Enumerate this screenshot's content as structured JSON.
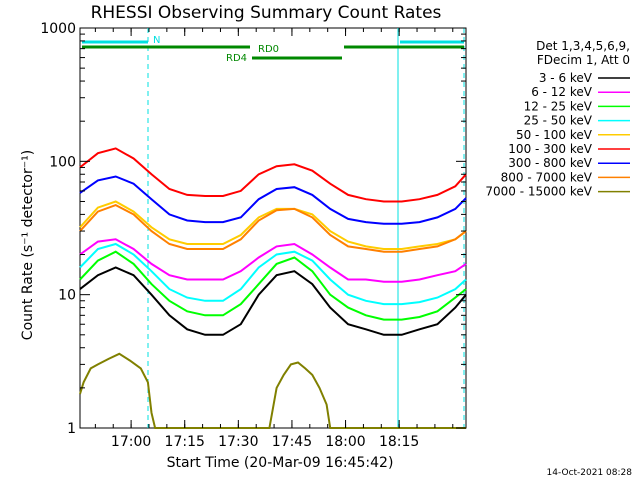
{
  "chart_data": {
    "type": "line",
    "title": "RHESSI Observing Summary Count Rates",
    "xlabel": "Start Time (20-Mar-09 16:45:42)",
    "ylabel": "Count Rate (s⁻¹ detector⁻¹)",
    "yscale": "log",
    "ylim": [
      1,
      1000
    ],
    "xlim_minutes": [
      0,
      108
    ],
    "x_ticks": [
      "17:00",
      "17:15",
      "17:30",
      "17:45",
      "18:00",
      "18:15"
    ],
    "y_ticks": [
      "1",
      "10",
      "100",
      "1000"
    ],
    "legend_header": [
      "Det 1,3,4,5,6,9,",
      "FDecim 1, Att 0"
    ],
    "legend_position": "top-right, outside plot",
    "grid": false,
    "annotations": {
      "night_label": "N",
      "rd0_label": "RD0",
      "rd4_label": "RD4"
    },
    "series": [
      {
        "name": "3 - 6 keV",
        "color": "#000000",
        "x": [
          0,
          5,
          10,
          15,
          20,
          25,
          30,
          35,
          40,
          45,
          50,
          55,
          60,
          65,
          70,
          75,
          80,
          85,
          90,
          95,
          100,
          105,
          108
        ],
        "values": [
          11,
          14,
          16,
          14,
          10,
          7,
          5.5,
          5,
          5,
          6,
          10,
          14,
          15,
          12,
          8,
          6,
          5.5,
          5,
          5,
          5.5,
          6,
          8,
          10
        ]
      },
      {
        "name": "6 - 12 keV",
        "color": "#ff00ff",
        "x": [
          0,
          5,
          10,
          15,
          20,
          25,
          30,
          35,
          40,
          45,
          50,
          55,
          60,
          65,
          70,
          75,
          80,
          85,
          90,
          95,
          100,
          105,
          108
        ],
        "values": [
          20,
          25,
          26,
          22,
          17,
          14,
          13,
          13,
          13,
          15,
          19,
          23,
          24,
          20,
          16,
          13,
          13,
          12.5,
          12.5,
          13,
          14,
          15,
          17
        ]
      },
      {
        "name": "12 - 25 keV",
        "color": "#00ff00",
        "x": [
          0,
          5,
          10,
          15,
          20,
          25,
          30,
          35,
          40,
          45,
          50,
          55,
          60,
          65,
          70,
          75,
          80,
          85,
          90,
          95,
          100,
          105,
          108
        ],
        "values": [
          13,
          18,
          21,
          17,
          12,
          9,
          7.5,
          7,
          7,
          8.5,
          12,
          17,
          19,
          15,
          10,
          8,
          7,
          6.5,
          6.5,
          6.8,
          7.5,
          9.5,
          11
        ]
      },
      {
        "name": "25 - 50 keV",
        "color": "#00ffff",
        "x": [
          0,
          5,
          10,
          15,
          20,
          25,
          30,
          35,
          40,
          45,
          50,
          55,
          60,
          65,
          70,
          75,
          80,
          85,
          90,
          95,
          100,
          105,
          108
        ],
        "values": [
          16,
          22,
          24,
          20,
          15,
          11,
          9.5,
          9,
          9,
          11,
          16,
          20,
          21,
          18,
          13,
          10,
          9,
          8.5,
          8.5,
          8.8,
          9.5,
          11,
          13
        ]
      },
      {
        "name": "50 - 100 keV",
        "color": "#ffcc00",
        "x": [
          0,
          5,
          10,
          15,
          20,
          25,
          30,
          35,
          40,
          45,
          50,
          55,
          60,
          65,
          70,
          75,
          80,
          85,
          90,
          95,
          100,
          105,
          108
        ],
        "values": [
          32,
          45,
          50,
          42,
          32,
          26,
          24,
          24,
          24,
          28,
          38,
          44,
          44,
          40,
          30,
          25,
          23,
          22,
          22,
          23,
          24,
          26,
          30
        ]
      },
      {
        "name": "100 - 300 keV",
        "color": "#ff0000",
        "x": [
          0,
          5,
          10,
          15,
          20,
          25,
          30,
          35,
          40,
          45,
          50,
          55,
          60,
          65,
          70,
          75,
          80,
          85,
          90,
          95,
          100,
          105,
          108
        ],
        "values": [
          90,
          115,
          125,
          105,
          80,
          62,
          56,
          55,
          55,
          60,
          80,
          92,
          95,
          85,
          68,
          56,
          52,
          50,
          50,
          52,
          56,
          65,
          80
        ]
      },
      {
        "name": "300 - 800 keV",
        "color": "#0000ff",
        "x": [
          0,
          5,
          10,
          15,
          20,
          25,
          30,
          35,
          40,
          45,
          50,
          55,
          60,
          65,
          70,
          75,
          80,
          85,
          90,
          95,
          100,
          105,
          108
        ],
        "values": [
          58,
          72,
          77,
          68,
          52,
          40,
          36,
          35,
          35,
          38,
          52,
          62,
          64,
          56,
          44,
          37,
          35,
          34,
          34,
          35,
          38,
          44,
          53
        ]
      },
      {
        "name": "800 - 7000 keV",
        "color": "#ff8000",
        "x": [
          0,
          5,
          10,
          15,
          20,
          25,
          30,
          35,
          40,
          45,
          50,
          55,
          60,
          65,
          70,
          75,
          80,
          85,
          90,
          95,
          100,
          105,
          108
        ],
        "values": [
          30,
          42,
          47,
          40,
          30,
          24,
          22,
          22,
          22,
          26,
          36,
          43,
          44,
          38,
          28,
          23,
          22,
          21,
          21,
          22,
          23,
          26,
          30
        ]
      },
      {
        "name": "7000 - 15000 keV",
        "color": "#808000",
        "x": [
          0,
          1,
          3,
          5,
          8,
          11,
          14,
          17,
          19,
          20,
          21,
          30,
          40,
          53,
          55,
          57,
          59,
          61,
          63,
          65,
          67,
          69,
          70,
          80,
          90,
          100,
          108
        ],
        "values": [
          1.8,
          2.2,
          2.8,
          3.0,
          3.3,
          3.6,
          3.2,
          2.8,
          2.2,
          1.3,
          1,
          1,
          1,
          1,
          2.0,
          2.5,
          3.0,
          3.1,
          2.8,
          2.5,
          2.0,
          1.5,
          1,
          1,
          1,
          1,
          1
        ]
      }
    ]
  },
  "footer": {
    "date": "14-Oct-2021 08:28"
  }
}
